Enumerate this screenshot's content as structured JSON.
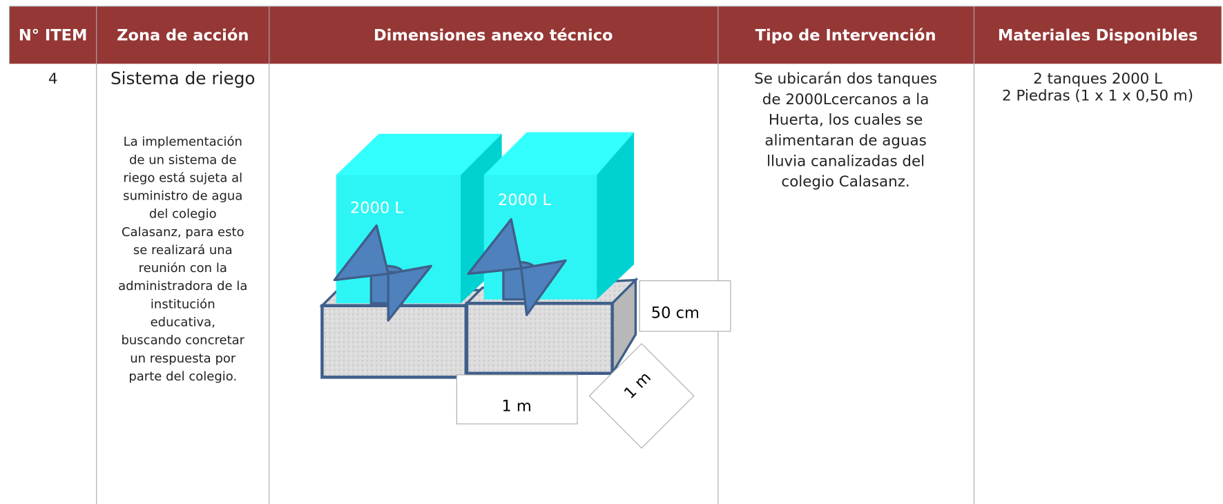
{
  "table": {
    "header": [
      "N° ITEM",
      "Zona de acción",
      "Dimensiones anexo técnico",
      "Tipo de Intervención",
      "Materiales Disponibles"
    ],
    "row": {
      "item": "4",
      "zona_title": "Sistema de riego",
      "zona_description": [
        "La implementación",
        "de un sistema de",
        "riego está sujeta al",
        "suministro de agua",
        "del colegio",
        "Calasanz, para esto",
        "se realizará una",
        "reunión con la",
        "administradora de la",
        "institución",
        "educativa,",
        "buscando concretar",
        "un respuesta por",
        "parte del colegio."
      ],
      "diagram": {
        "tank_1_label": "2000 L",
        "tank_2_label": "2000 L",
        "height_label": "50 cm",
        "width_label": "1 m",
        "depth_label": "1 m"
      },
      "tipo": [
        "Se ubicarán dos tanques",
        "de 2000Lcercanos a la",
        "Huerta, los cuales se",
        "alimentaran de aguas",
        "lluvia canalizadas del",
        "colegio Calasanz."
      ],
      "materiales": [
        "2 tanques 2000 L",
        "2 Piedras (1 x 1 x 0,50 m)"
      ]
    }
  }
}
